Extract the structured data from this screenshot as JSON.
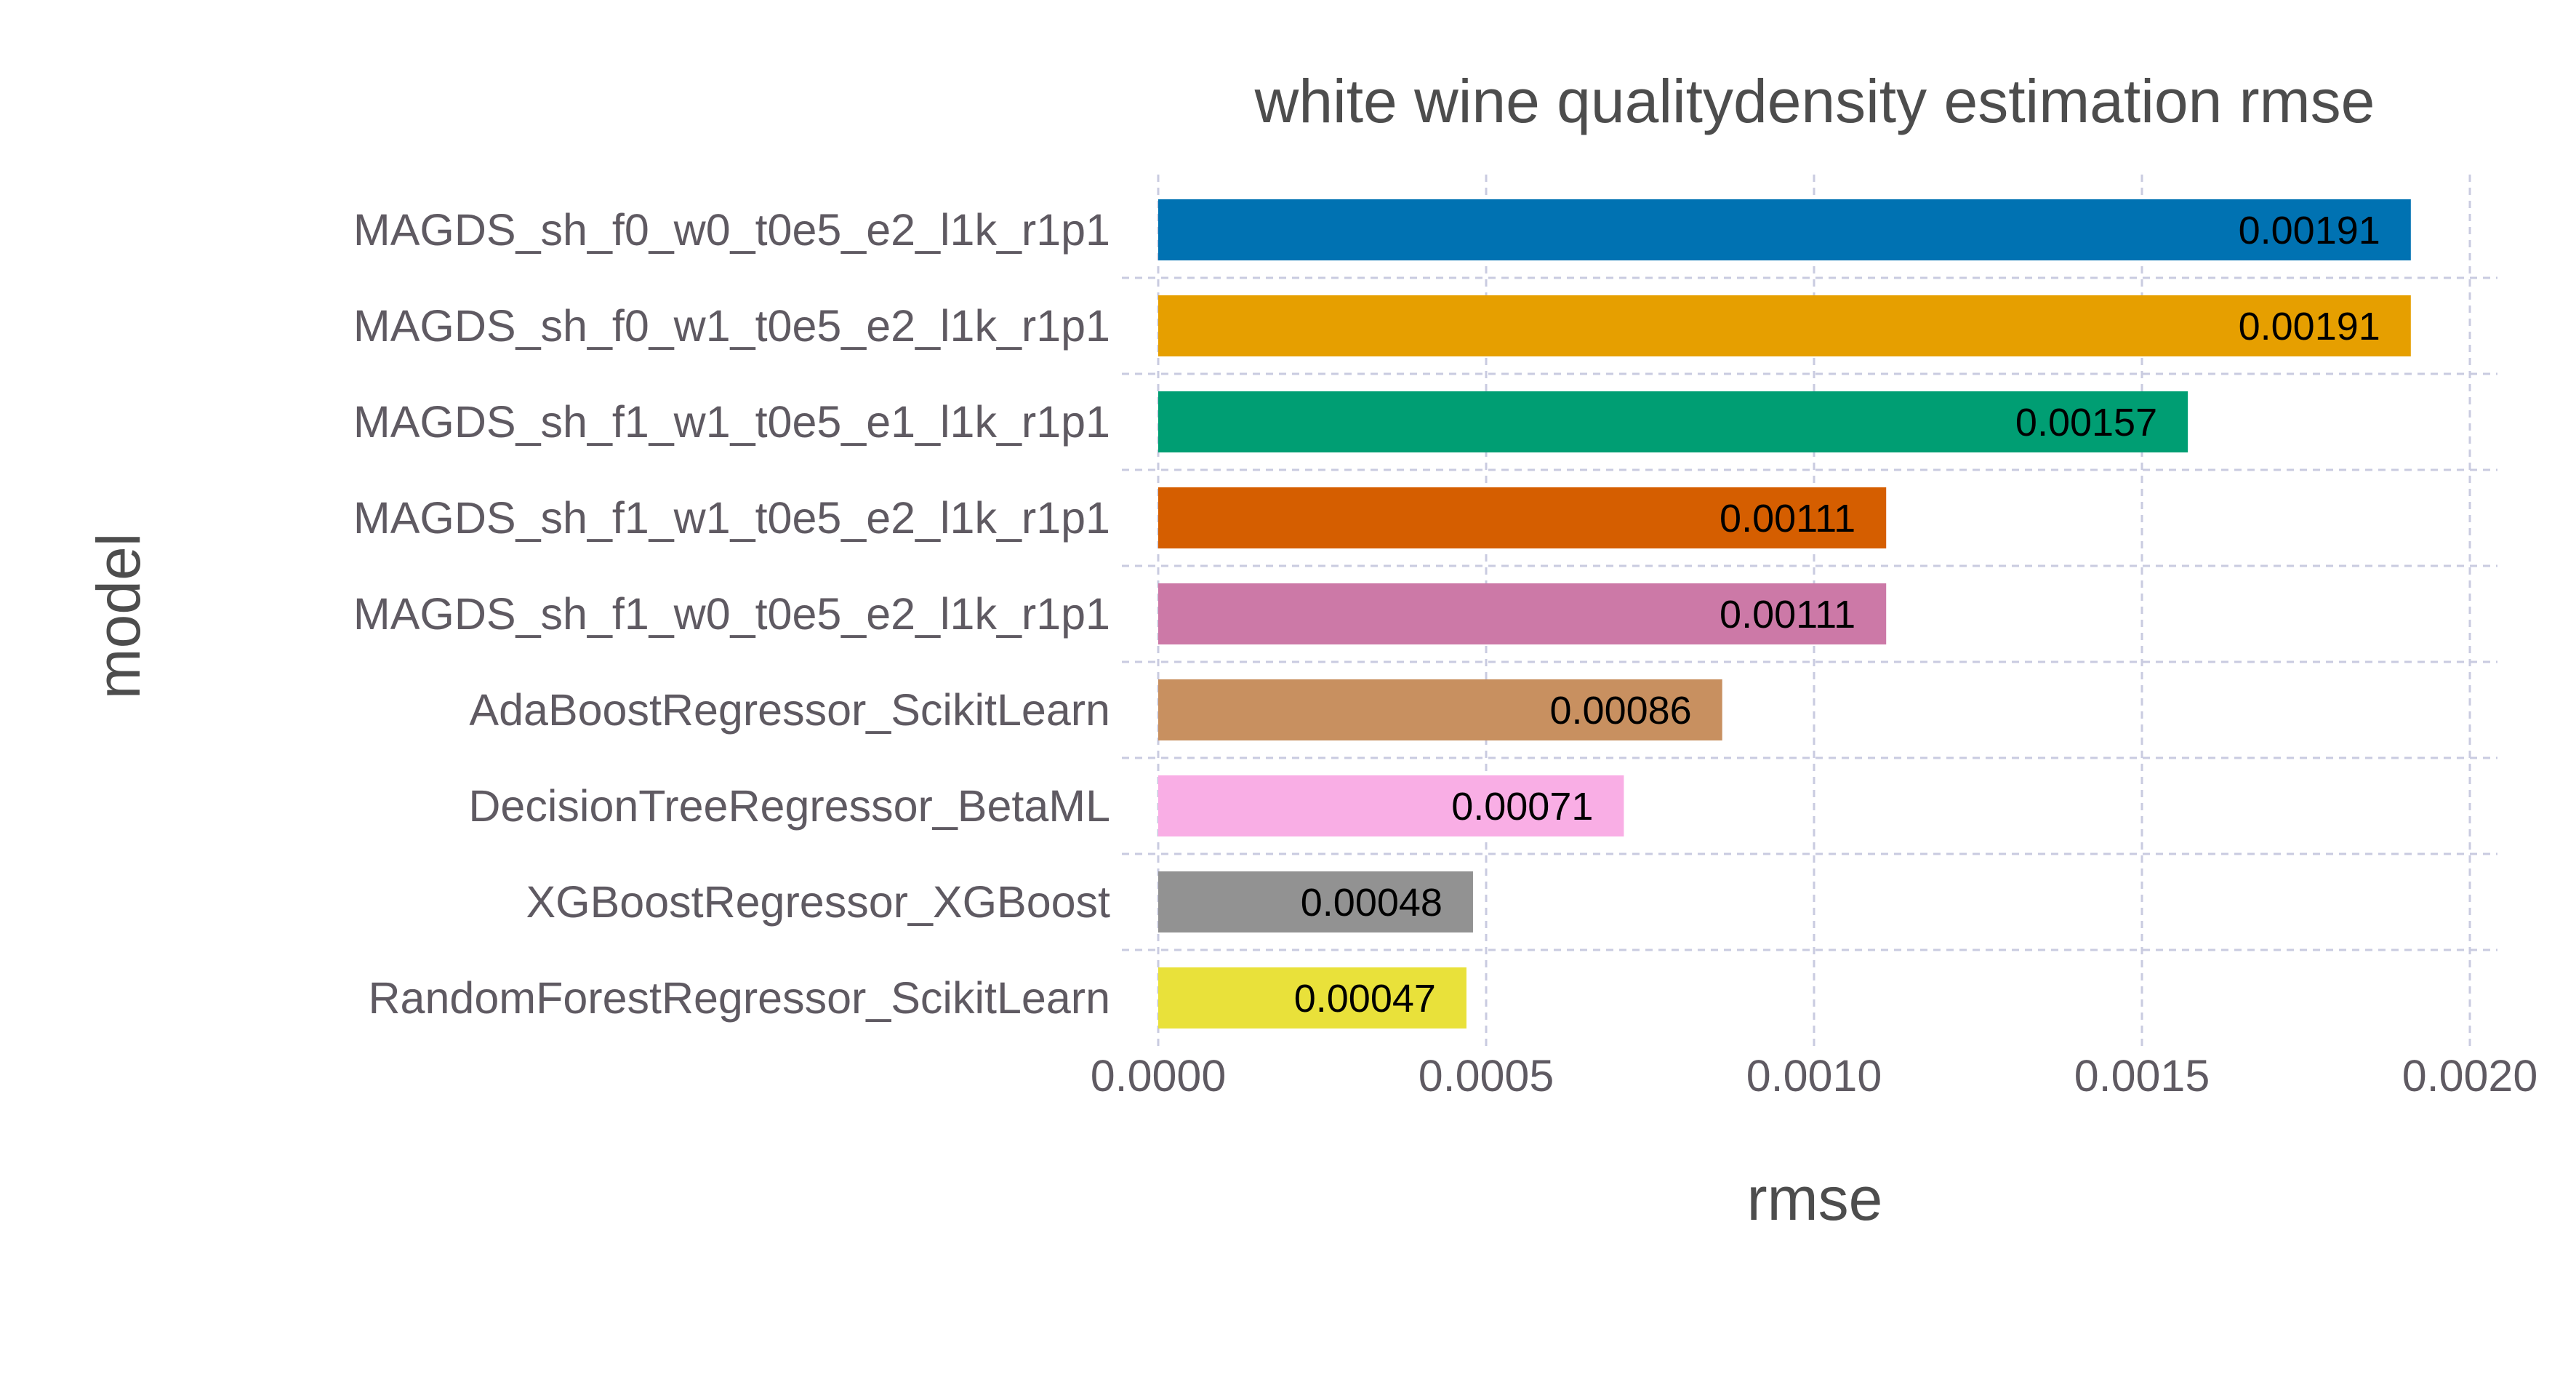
{
  "chart_data": {
    "type": "bar",
    "orientation": "horizontal",
    "title": "white wine qualitydensity estimation rmse",
    "xlabel": "rmse",
    "ylabel": "model",
    "xlim": [
      0,
      0.002
    ],
    "x_ticks": [
      "0.0000",
      "0.0005",
      "0.0010",
      "0.0015",
      "0.0020"
    ],
    "grid": true,
    "categories": [
      "MAGDS_sh_f0_w0_t0e5_e2_l1k_r1p1",
      "MAGDS_sh_f0_w1_t0e5_e2_l1k_r1p1",
      "MAGDS_sh_f1_w1_t0e5_e1_l1k_r1p1",
      "MAGDS_sh_f1_w1_t0e5_e2_l1k_r1p1",
      "MAGDS_sh_f1_w0_t0e5_e2_l1k_r1p1",
      "AdaBoostRegressor_ScikitLearn",
      "DecisionTreeRegressor_BetaML",
      "XGBoostRegressor_XGBoost",
      "RandomForestRegressor_ScikitLearn"
    ],
    "values": [
      0.00191,
      0.00191,
      0.00157,
      0.00111,
      0.00111,
      0.00086,
      0.00071,
      0.00048,
      0.00047
    ],
    "value_labels": [
      "0.00191",
      "0.00191",
      "0.00157",
      "0.00111",
      "0.00111",
      "0.00086",
      "0.00071",
      "0.00048",
      "0.00047"
    ],
    "colors": [
      "#0072b2",
      "#e69f00",
      "#009e73",
      "#d55e00",
      "#cc79a7",
      "#c89060",
      "#f9aee5",
      "#929292",
      "#e9e13a"
    ]
  }
}
